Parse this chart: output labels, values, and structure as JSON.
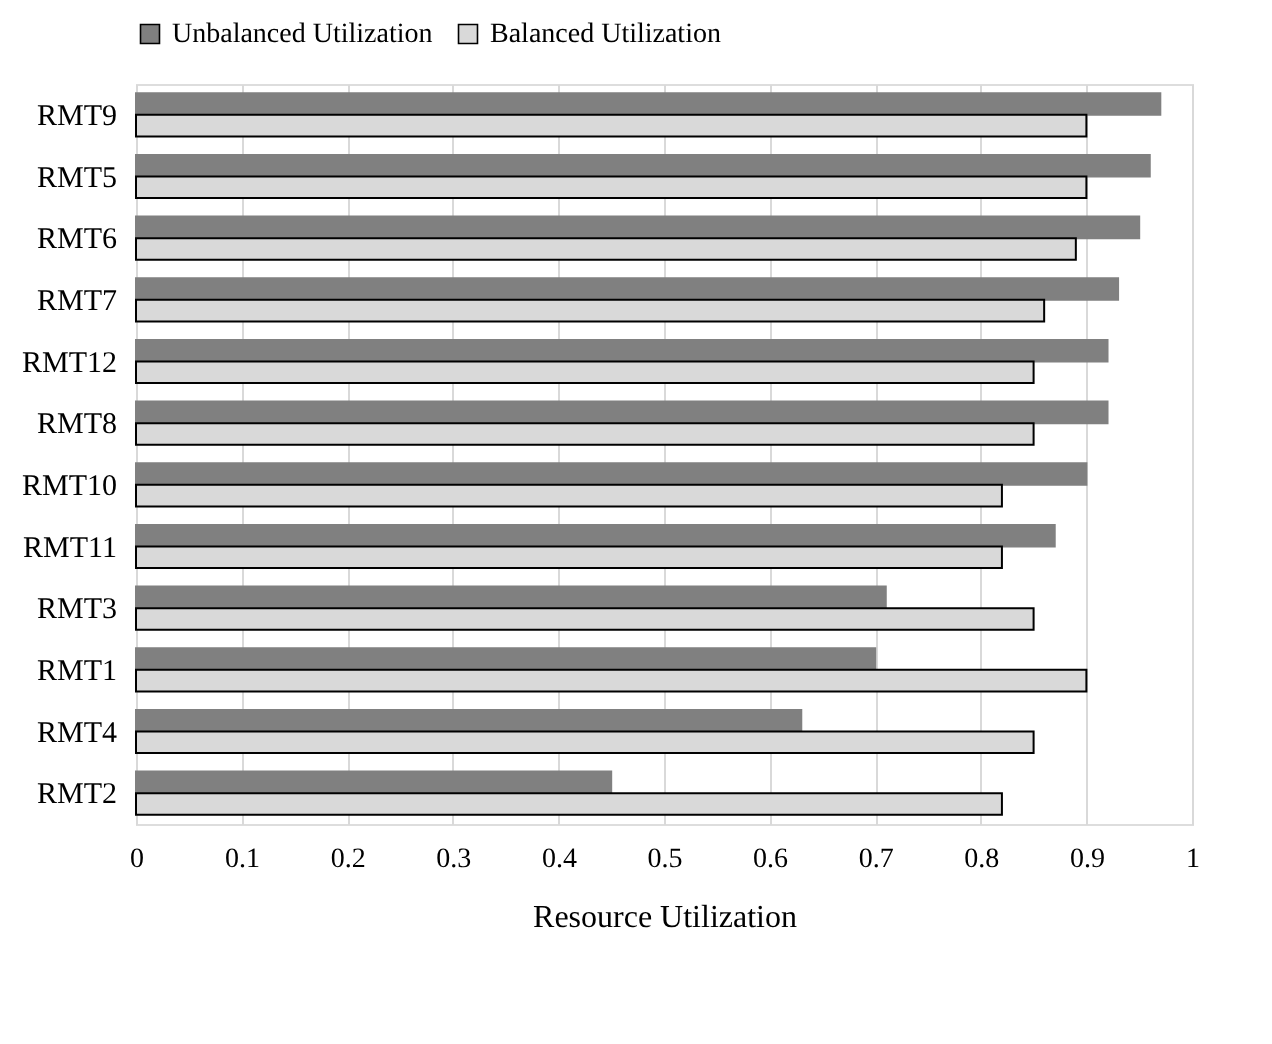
{
  "chart_data": {
    "type": "bar",
    "orientation": "horizontal",
    "xlabel": "Resource Utilization",
    "categories": [
      "RMT9",
      "RMT5",
      "RMT6",
      "RMT7",
      "RMT12",
      "RMT8",
      "RMT10",
      "RMT11",
      "RMT3",
      "RMT1",
      "RMT4",
      "RMT2"
    ],
    "series": [
      {
        "name": "Unbalanced Utilization",
        "color": "#808080",
        "values": [
          0.97,
          0.96,
          0.95,
          0.93,
          0.92,
          0.92,
          0.9,
          0.87,
          0.71,
          0.7,
          0.63,
          0.45
        ]
      },
      {
        "name": "Balanced Utilization",
        "color": "#d9d9d9",
        "values": [
          0.9,
          0.9,
          0.89,
          0.86,
          0.85,
          0.85,
          0.82,
          0.82,
          0.85,
          0.9,
          0.85,
          0.82
        ]
      }
    ],
    "xlim": [
      0,
      1
    ],
    "xticks": [
      0,
      0.1,
      0.2,
      0.3,
      0.4,
      0.5,
      0.6,
      0.7,
      0.8,
      0.9,
      1
    ],
    "grid": "x",
    "legend": "top"
  }
}
